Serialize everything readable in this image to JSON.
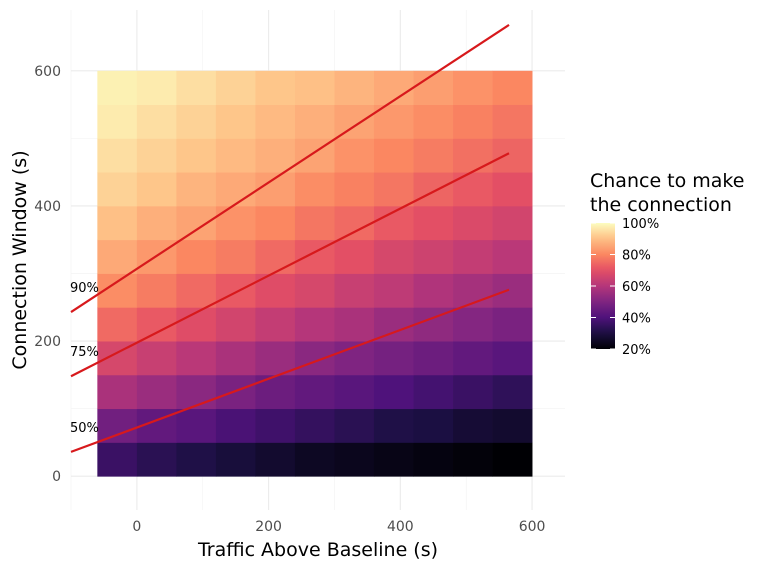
{
  "chart_data": {
    "type": "heatmap",
    "xlabel": "Traffic Above Baseline (s)",
    "ylabel": "Connection Window (s)",
    "xlim": [
      -100,
      650
    ],
    "ylim": [
      -50,
      690
    ],
    "xticks": [
      0,
      200,
      400,
      600
    ],
    "yticks": [
      0,
      200,
      400,
      600
    ],
    "xtick_labels": [
      "0",
      "200",
      "400",
      "600"
    ],
    "ytick_labels": [
      "0",
      "200",
      "400",
      "600"
    ],
    "grid": true,
    "x": [
      -30,
      30,
      90,
      150,
      210,
      270,
      330,
      390,
      450,
      510,
      570
    ],
    "y": [
      25,
      75,
      125,
      175,
      225,
      275,
      325,
      375,
      425,
      475,
      525,
      575
    ],
    "z": [
      [
        0.36,
        0.33,
        0.31,
        0.29,
        0.27,
        0.25,
        0.24,
        0.23,
        0.22,
        0.21,
        0.2
      ],
      [
        0.47,
        0.44,
        0.42,
        0.39,
        0.37,
        0.35,
        0.33,
        0.31,
        0.3,
        0.28,
        0.27
      ],
      [
        0.58,
        0.55,
        0.52,
        0.49,
        0.46,
        0.44,
        0.42,
        0.4,
        0.38,
        0.36,
        0.34
      ],
      [
        0.67,
        0.64,
        0.61,
        0.58,
        0.55,
        0.52,
        0.5,
        0.48,
        0.46,
        0.44,
        0.42
      ],
      [
        0.75,
        0.72,
        0.69,
        0.66,
        0.63,
        0.6,
        0.58,
        0.55,
        0.53,
        0.51,
        0.49
      ],
      [
        0.81,
        0.78,
        0.75,
        0.72,
        0.69,
        0.67,
        0.64,
        0.62,
        0.59,
        0.57,
        0.55
      ],
      [
        0.86,
        0.83,
        0.8,
        0.78,
        0.75,
        0.72,
        0.7,
        0.67,
        0.65,
        0.63,
        0.61
      ],
      [
        0.9,
        0.87,
        0.85,
        0.82,
        0.8,
        0.77,
        0.75,
        0.72,
        0.7,
        0.68,
        0.66
      ],
      [
        0.93,
        0.91,
        0.88,
        0.86,
        0.84,
        0.81,
        0.79,
        0.77,
        0.74,
        0.72,
        0.7
      ],
      [
        0.95,
        0.93,
        0.91,
        0.89,
        0.87,
        0.85,
        0.82,
        0.8,
        0.78,
        0.76,
        0.74
      ],
      [
        0.97,
        0.95,
        0.93,
        0.91,
        0.89,
        0.87,
        0.85,
        0.83,
        0.81,
        0.79,
        0.77
      ],
      [
        0.98,
        0.97,
        0.95,
        0.93,
        0.91,
        0.9,
        0.88,
        0.86,
        0.84,
        0.82,
        0.8
      ]
    ],
    "contours": [
      {
        "label": "90%",
        "x": [
          -100,
          565
        ],
        "y": [
          243,
          668
        ]
      },
      {
        "label": "75%",
        "x": [
          -100,
          565
        ],
        "y": [
          148,
          478
        ]
      },
      {
        "label": "50%",
        "x": [
          -100,
          565
        ],
        "y": [
          36,
          276
        ]
      }
    ],
    "contour_color": "#d7191c",
    "colorscale": "magma",
    "legend": {
      "title_line1": "Chance to make",
      "title_line2": "the connection",
      "ticks": [
        1.0,
        0.8,
        0.6,
        0.4,
        0.2
      ],
      "tick_labels": [
        "100%",
        "80%",
        "60%",
        "40%",
        "20%"
      ],
      "range": [
        0.2,
        1.0
      ],
      "placement": "right"
    }
  }
}
